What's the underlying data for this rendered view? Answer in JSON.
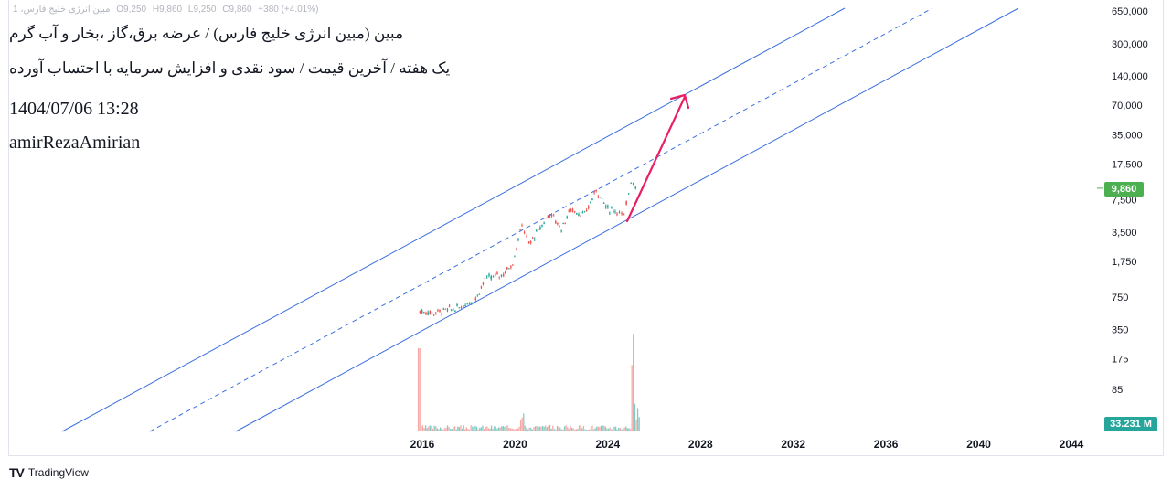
{
  "header": {
    "symbol_line": "مبین انرژی خلیج فارس، 1",
    "open": "O9,250",
    "high": "H9,860",
    "low": "L9,250",
    "close": "C9,860",
    "change": "+380 (+4.01%)"
  },
  "annotations": {
    "line1": "مبین (مبین انرژی خلیج فارس) / عرضه برق،گاز ،بخار و آب گرم",
    "line2": "یک هفته / آخرین قیمت / سود نقدی و افزایش سرمایه با احتساب آورده",
    "date": "1404/07/06 13:28",
    "author": "amirRezaAmirian"
  },
  "price_tags": {
    "last_price": "9,860",
    "volume": "33.231 M"
  },
  "footer": {
    "brand": "TradingView"
  },
  "colors": {
    "channel": "#3b6fe0",
    "arrow": "#e91e63",
    "up": "#26a69a",
    "down": "#ef5350",
    "last_price": "#4caf50"
  },
  "chart_data": {
    "type": "line",
    "scale": "log",
    "y_ticks": [
      "650,000",
      "300,000",
      "140,000",
      "70,000",
      "35,000",
      "17,500",
      "7,500",
      "3,500",
      "1,750",
      "750",
      "350",
      "175",
      "85"
    ],
    "x_ticks": [
      "2016",
      "2020",
      "2024",
      "2028",
      "2032",
      "2036",
      "2040",
      "2044"
    ],
    "series": [
      {
        "x": [
          2015.9,
          2016.5,
          2017.5,
          2018.3,
          2018.7,
          2019.5,
          2019.9,
          2020.3,
          2020.6,
          2021.0,
          2021.5,
          2022.0,
          2022.4,
          2023.0,
          2023.5,
          2024.0,
          2024.4,
          2024.7,
          2025.0,
          2025.3
        ],
        "values": [
          540,
          520,
          580,
          720,
          1150,
          1300,
          1700,
          4200,
          2600,
          3600,
          5500,
          3800,
          6000,
          5200,
          9500,
          6000,
          5800,
          5000,
          12000,
          9860
        ]
      }
    ],
    "volume_unit": "M",
    "last_price": 9860
  }
}
